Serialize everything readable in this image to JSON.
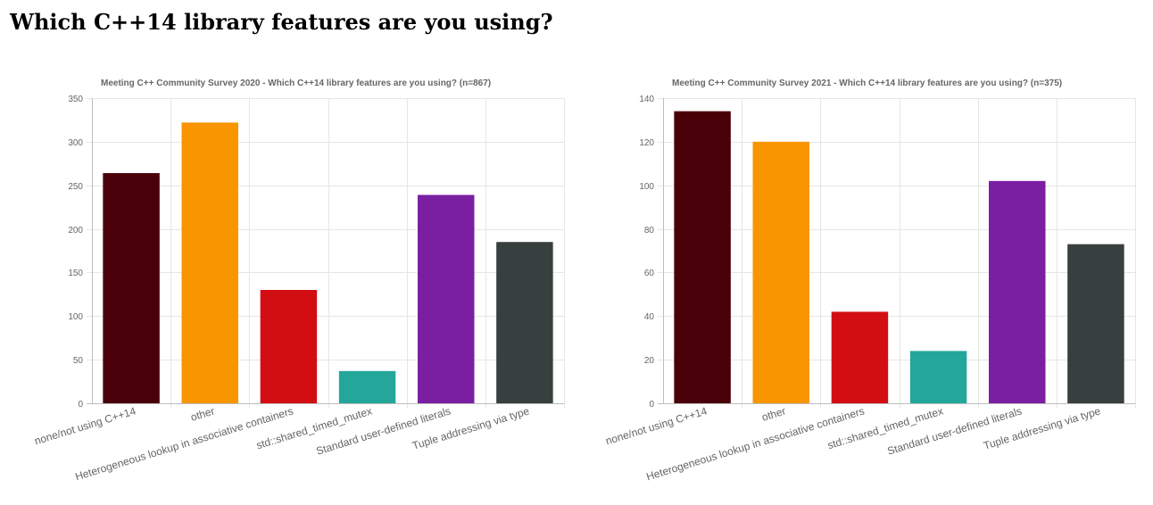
{
  "page": {
    "title": "Which C++14 library features are you using?"
  },
  "colors": [
    "#4a0008",
    "#f89500",
    "#d20e13",
    "#24a79a",
    "#7b1fa2",
    "#37403f"
  ],
  "chart_data": [
    {
      "type": "bar",
      "title": "Meeting C++ Community Survey 2020 - Which C++14 library features are you using? (n=867)",
      "categories": [
        "none/not using C++14",
        "other",
        "Heterogeneous lookup in associative containers",
        "std::shared_timed_mutex",
        "Standard user-defined literals",
        "Tuple addressing via type"
      ],
      "values": [
        264,
        322,
        130,
        37,
        239,
        185
      ],
      "ylim": [
        0,
        350
      ],
      "yticks": [
        0,
        50,
        100,
        150,
        200,
        250,
        300,
        350
      ],
      "grid": true
    },
    {
      "type": "bar",
      "title": "Meeting C++ Community Survey 2021  - Which C++14 library features are you using? (n=375)",
      "categories": [
        "none/not using C++14",
        "other",
        "Heterogeneous lookup in associative containers",
        "std::shared_timed_mutex",
        "Standard user-defined literals",
        "Tuple addressing via type"
      ],
      "values": [
        134,
        120,
        42,
        24,
        102,
        73
      ],
      "ylim": [
        0,
        140
      ],
      "yticks": [
        0,
        20,
        40,
        60,
        80,
        100,
        120,
        140
      ],
      "grid": true
    }
  ]
}
